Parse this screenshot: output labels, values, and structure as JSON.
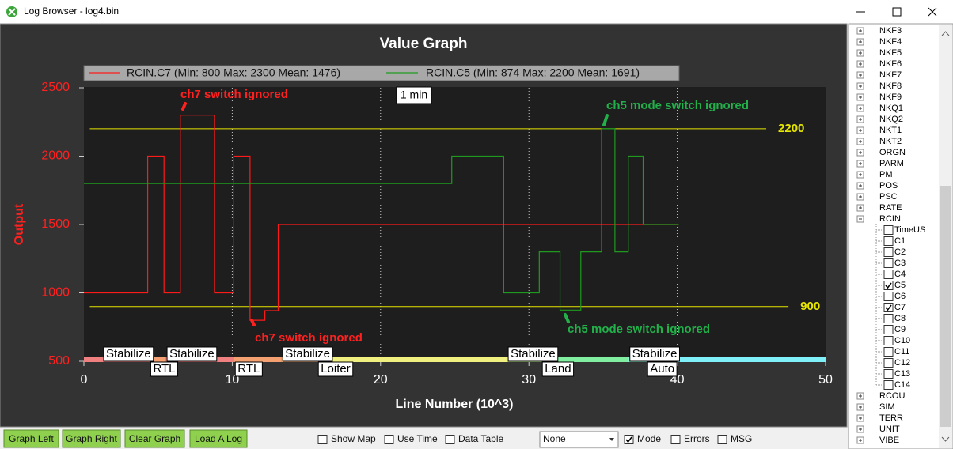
{
  "window": {
    "title": "Log Browser - log4.bin"
  },
  "chart_data": {
    "type": "line",
    "title": "Value Graph",
    "xlabel": "Line Number (10^3)",
    "ylabel": "Output",
    "xlim": [
      0,
      50
    ],
    "xticks": [
      0,
      10,
      20,
      30,
      40,
      50
    ],
    "ylim": [
      500,
      2500
    ],
    "yticks": [
      500,
      1000,
      1500,
      2000,
      2500
    ],
    "grid": true,
    "series": [
      {
        "name": "RCIN.C7 (Min: 800 Max: 2300 Mean: 1476)",
        "color": "#ff1a1a",
        "x": [
          0,
          4.3,
          4.3,
          5.4,
          5.4,
          6.5,
          6.5,
          8.8,
          8.8,
          10.1,
          10.1,
          11.2,
          11.2,
          12.2,
          12.2,
          13.1,
          13.1,
          40.1
        ],
        "values": [
          1000,
          1000,
          2000,
          2000,
          1000,
          1000,
          2300,
          2300,
          1000,
          1000,
          2000,
          2000,
          800,
          800,
          870,
          870,
          1500,
          1500
        ]
      },
      {
        "name": "RCIN.C5 (Min: 874 Max: 2200 Mean: 1691)",
        "color": "#1f9a1f",
        "x": [
          0,
          24.8,
          24.8,
          28.3,
          28.3,
          30.7,
          30.7,
          32.1,
          32.1,
          33.5,
          33.5,
          34.9,
          34.9,
          35.8,
          35.8,
          36.7,
          36.7,
          37.7,
          37.7,
          40.1
        ],
        "values": [
          1800,
          1800,
          2000,
          2000,
          1000,
          1000,
          1300,
          1300,
          874,
          874,
          1300,
          1300,
          2200,
          2200,
          1300,
          1300,
          2000,
          2000,
          1500,
          1500
        ]
      }
    ],
    "hlines": [
      {
        "value": 2200,
        "color": "#e6e600",
        "xrange": [
          0.4,
          46
        ]
      },
      {
        "value": 900,
        "color": "#e6e600",
        "xrange": [
          0.4,
          47.5
        ]
      }
    ],
    "time_label": "1 min",
    "modes": [
      {
        "name": "Stabilize",
        "start": 0,
        "color": "#f08080"
      },
      {
        "name": "RTL",
        "start": 4.4,
        "color": "#f4a070"
      },
      {
        "name": "Stabilize",
        "start": 5.5,
        "color": "#f08080"
      },
      {
        "name": "RTL",
        "start": 10.1,
        "color": "#f4a070"
      },
      {
        "name": "Stabilize",
        "start": 13.3,
        "color": "#f4b080"
      },
      {
        "name": "Loiter",
        "start": 15.7,
        "color": "#f0f080"
      },
      {
        "name": "Stabilize",
        "start": 28.5,
        "color": "#c0f090"
      },
      {
        "name": "Land",
        "start": 30.8,
        "color": "#80f0a0"
      },
      {
        "name": "Stabilize",
        "start": 36.7,
        "color": "#90f0d0"
      },
      {
        "name": "Auto",
        "start": 37.9,
        "color": "#80f0f8"
      }
    ],
    "annotations": [
      {
        "text": "ch7 switch ignored",
        "color": "#ff2020"
      },
      {
        "text": "ch7 switch ignored",
        "color": "#ff2020"
      },
      {
        "text": "ch5 mode switch ignored",
        "color": "#22b04a"
      },
      {
        "text": "ch5 mode switch ignored",
        "color": "#22b04a"
      }
    ]
  },
  "tree": {
    "before": [
      "NKF3",
      "NKF4",
      "NKF5",
      "NKF6",
      "NKF7",
      "NKF8",
      "NKF9",
      "NKQ1",
      "NKQ2",
      "NKT1",
      "NKT2",
      "ORGN",
      "PARM",
      "PM",
      "POS",
      "PSC",
      "RATE"
    ],
    "expanded": {
      "label": "RCIN",
      "children": [
        {
          "label": "TimeUS",
          "checked": false
        },
        {
          "label": "C1",
          "checked": false
        },
        {
          "label": "C2",
          "checked": false
        },
        {
          "label": "C3",
          "checked": false
        },
        {
          "label": "C4",
          "checked": false
        },
        {
          "label": "C5",
          "checked": true
        },
        {
          "label": "C6",
          "checked": false
        },
        {
          "label": "C7",
          "checked": true
        },
        {
          "label": "C8",
          "checked": false
        },
        {
          "label": "C9",
          "checked": false
        },
        {
          "label": "C10",
          "checked": false
        },
        {
          "label": "C11",
          "checked": false
        },
        {
          "label": "C12",
          "checked": false
        },
        {
          "label": "C13",
          "checked": false
        },
        {
          "label": "C14",
          "checked": false
        }
      ]
    },
    "after": [
      "RCOU",
      "SIM",
      "TERR",
      "UNIT",
      "VIBE"
    ]
  },
  "controls": {
    "buttons": [
      "Graph Left",
      "Graph Right",
      "Clear Graph",
      "Load A Log"
    ],
    "checkboxes": [
      {
        "label": "Show Map",
        "checked": false
      },
      {
        "label": "Use Time",
        "checked": false
      },
      {
        "label": "Data Table",
        "checked": false
      }
    ],
    "dropdown": "None",
    "checkboxes2": [
      {
        "label": "Mode",
        "checked": true
      },
      {
        "label": "Errors",
        "checked": false
      },
      {
        "label": "MSG",
        "checked": false
      }
    ]
  }
}
